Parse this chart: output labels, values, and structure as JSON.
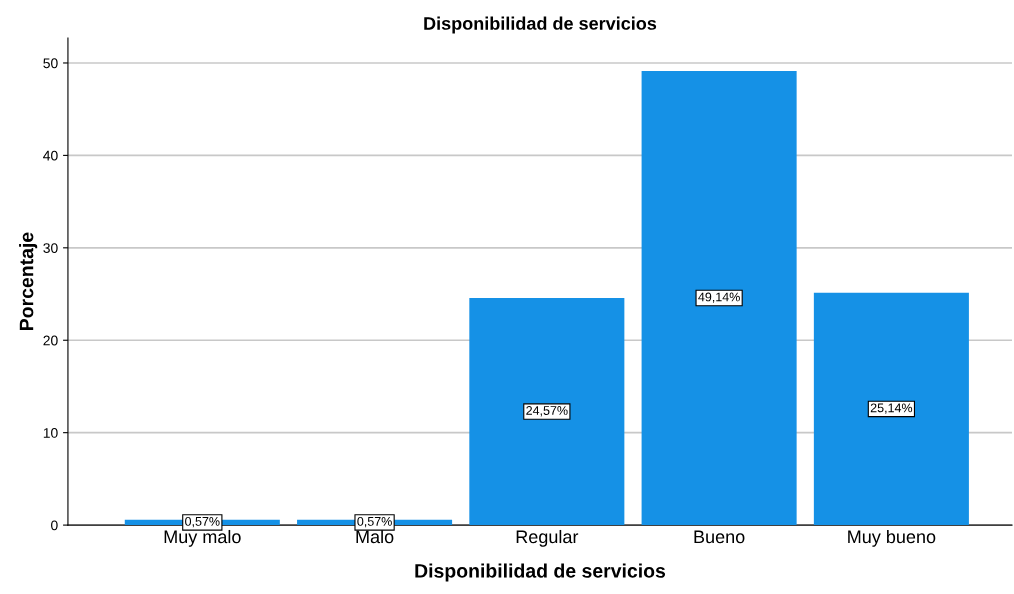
{
  "chart_data": {
    "type": "bar",
    "title": "Disponibilidad de servicios",
    "xlabel": "Disponibilidad de servicios",
    "ylabel": "Porcentaje",
    "categories": [
      "Muy malo",
      "Malo",
      "Regular",
      "Bueno",
      "Muy bueno"
    ],
    "values": [
      0.57,
      0.57,
      24.57,
      49.14,
      25.14
    ],
    "value_labels": [
      "0,57%",
      "0,57%",
      "24,57%",
      "49,14%",
      "25,14%"
    ],
    "color": "#1591e6",
    "ylim": [
      0,
      52.7
    ],
    "yticks": [
      0,
      10,
      20,
      30,
      40,
      50
    ],
    "grid": "y"
  }
}
